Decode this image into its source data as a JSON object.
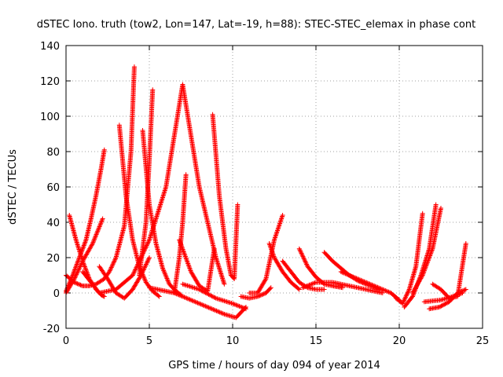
{
  "chart_data": {
    "type": "scatter",
    "title": "dSTEC Iono. truth (tow2, Lon=147, Lat=-19, h=88): STEC-STEC_elemax in phase cont",
    "xlabel": "GPS time / hours of day 094 of year 2014",
    "ylabel": "dSTEC  / TECUs",
    "xlim": [
      0,
      25
    ],
    "ylim": [
      -20,
      140
    ],
    "x_ticks": [
      0,
      5,
      10,
      15,
      20,
      25
    ],
    "y_ticks": [
      -20,
      0,
      20,
      40,
      60,
      80,
      100,
      120,
      140
    ],
    "grid": true,
    "marker": "+",
    "color": "#ff0000",
    "series": [
      {
        "x": [
          0.0,
          0.4,
          0.8,
          1.2,
          1.5,
          1.8,
          2.1,
          2.3
        ],
        "y": [
          1,
          10,
          20,
          30,
          42,
          55,
          70,
          81
        ]
      },
      {
        "x": [
          0.2,
          0.6,
          1.0,
          1.4,
          1.8,
          2.1,
          2.3
        ],
        "y": [
          44,
          30,
          18,
          8,
          2,
          -1,
          -2
        ]
      },
      {
        "x": [
          0.0,
          0.5,
          1.0,
          1.4,
          1.8,
          2.3,
          2.6,
          3.0,
          3.5,
          3.9,
          4.1
        ],
        "y": [
          10,
          6,
          4,
          4,
          5,
          8,
          12,
          20,
          38,
          80,
          128
        ]
      },
      {
        "x": [
          0.0,
          0.5,
          1.0,
          1.6,
          2.2
        ],
        "y": [
          0,
          8,
          18,
          28,
          42
        ]
      },
      {
        "x": [
          3.2,
          3.6,
          4.0,
          4.4,
          4.8,
          5.2,
          5.6
        ],
        "y": [
          95,
          55,
          30,
          15,
          6,
          1,
          -2
        ]
      },
      {
        "x": [
          4.4,
          4.8,
          5.0,
          5.2
        ],
        "y": [
          10,
          40,
          75,
          115
        ]
      },
      {
        "x": [
          4.6,
          5.0,
          5.4,
          5.8,
          6.2,
          6.6,
          6.9
        ],
        "y": [
          92,
          50,
          28,
          14,
          5,
          1,
          -1
        ]
      },
      {
        "x": [
          1.0,
          2.0,
          3.0,
          4.0,
          5.0,
          6.0,
          7.0,
          8.0,
          9.0,
          9.5
        ],
        "y": [
          12,
          0,
          2,
          10,
          30,
          60,
          118,
          60,
          20,
          5
        ]
      },
      {
        "x": [
          2.0,
          2.5,
          3.0,
          3.5,
          4.0,
          4.5,
          5.0
        ],
        "y": [
          15,
          8,
          0,
          -3,
          2,
          10,
          20
        ]
      },
      {
        "x": [
          6.5,
          6.8,
          7.0,
          7.2
        ],
        "y": [
          0,
          20,
          40,
          67
        ]
      },
      {
        "x": [
          6.8,
          7.5,
          8.0,
          8.5,
          8.9
        ],
        "y": [
          30,
          12,
          4,
          1,
          25
        ]
      },
      {
        "x": [
          8.8,
          9.2,
          9.6,
          9.9,
          10.1,
          10.3
        ],
        "y": [
          101,
          55,
          25,
          10,
          8,
          50
        ]
      },
      {
        "x": [
          5.0,
          6.5,
          7.5,
          8.5,
          9.5,
          10.2,
          10.8
        ],
        "y": [
          3,
          0,
          -4,
          -8,
          -12,
          -14,
          -8
        ]
      },
      {
        "x": [
          7.0,
          8.0,
          9.0,
          10.0,
          10.8
        ],
        "y": [
          5,
          2,
          -3,
          -6,
          -9
        ]
      },
      {
        "x": [
          10.5,
          11.0,
          11.5,
          12.0,
          12.3
        ],
        "y": [
          -2,
          -3,
          -2,
          0,
          3
        ]
      },
      {
        "x": [
          11.0,
          11.5,
          12.0,
          12.5,
          13.0
        ],
        "y": [
          0,
          0,
          8,
          30,
          44
        ]
      },
      {
        "x": [
          12.2,
          12.5,
          13.0,
          13.5,
          14.0
        ],
        "y": [
          28,
          20,
          12,
          6,
          2
        ]
      },
      {
        "x": [
          13.0,
          13.5,
          14.0,
          14.5,
          15.0,
          15.5
        ],
        "y": [
          18,
          12,
          6,
          3,
          2,
          2
        ]
      },
      {
        "x": [
          14.0,
          14.5,
          15.0,
          15.5,
          16.0,
          16.6
        ],
        "y": [
          25,
          15,
          9,
          5,
          4,
          3
        ]
      },
      {
        "x": [
          14.2,
          15.0,
          16.0,
          17.0,
          18.0,
          19.0
        ],
        "y": [
          3,
          6,
          6,
          4,
          2,
          0
        ]
      },
      {
        "x": [
          15.5,
          16.0,
          16.5,
          17.0,
          17.5,
          18.0,
          18.8
        ],
        "y": [
          23,
          18,
          14,
          10,
          7,
          5,
          2
        ]
      },
      {
        "x": [
          16.5,
          17.5,
          18.5,
          19.5,
          20.0
        ],
        "y": [
          12,
          8,
          4,
          0,
          -4
        ]
      },
      {
        "x": [
          19.8,
          20.2,
          20.6,
          21.0,
          21.4
        ],
        "y": [
          -3,
          -6,
          2,
          15,
          45
        ]
      },
      {
        "x": [
          20.3,
          20.8,
          21.3,
          21.8,
          22.2
        ],
        "y": [
          -8,
          -2,
          10,
          25,
          50
        ]
      },
      {
        "x": [
          20.8,
          21.4,
          22.0,
          22.5
        ],
        "y": [
          0,
          10,
          25,
          48
        ]
      },
      {
        "x": [
          21.8,
          22.4,
          23.0,
          23.5,
          24.0
        ],
        "y": [
          -9,
          -8,
          -5,
          0,
          2
        ]
      },
      {
        "x": [
          22.0,
          22.5,
          23.0,
          23.5,
          24.0
        ],
        "y": [
          5,
          2,
          -3,
          -2,
          28
        ]
      },
      {
        "x": [
          21.5,
          22.5,
          23.2,
          23.8
        ],
        "y": [
          -5,
          -4,
          -2,
          0
        ]
      }
    ]
  }
}
